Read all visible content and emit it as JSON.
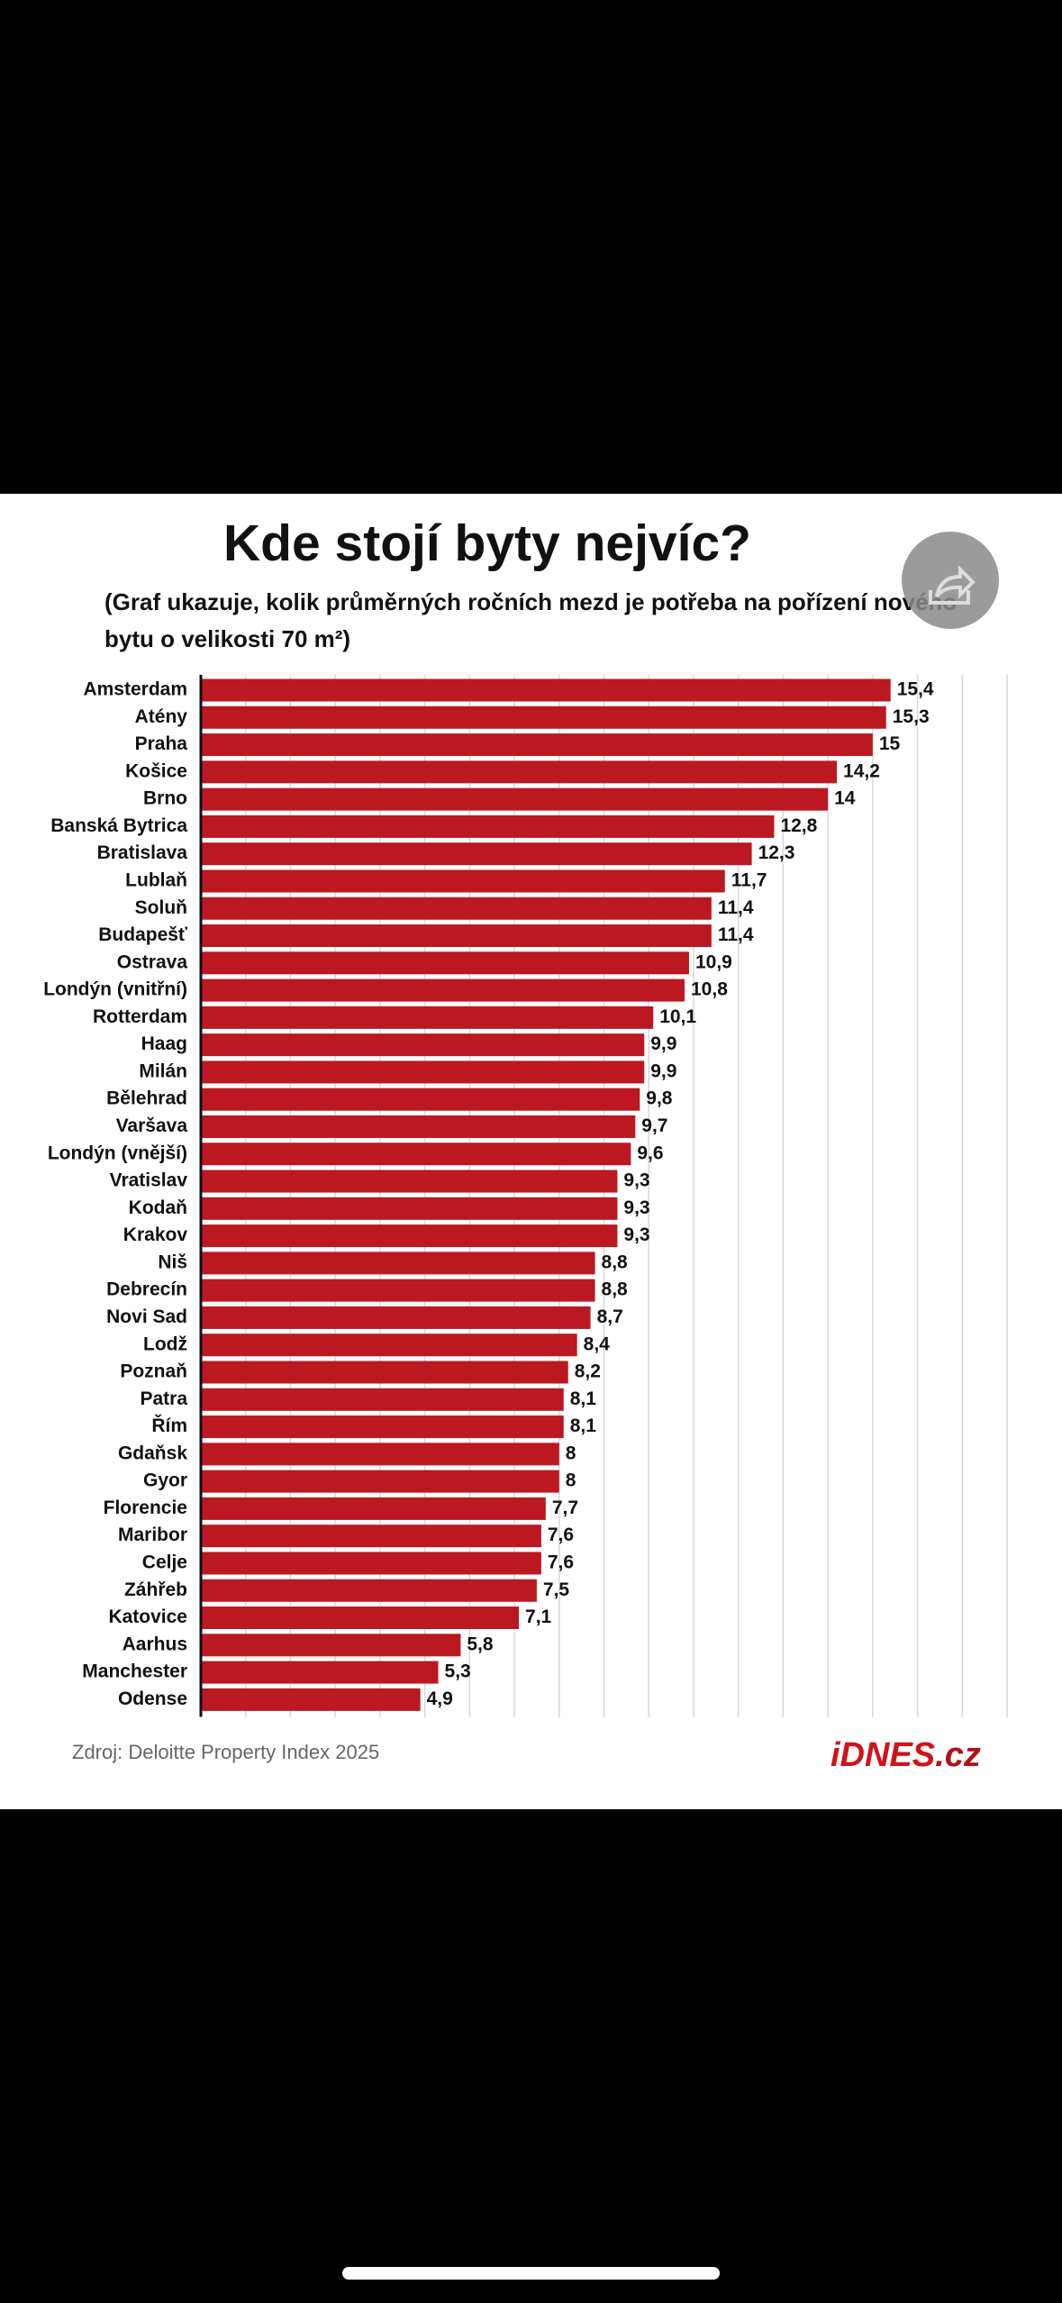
{
  "chart_data": {
    "type": "bar",
    "orientation": "horizontal",
    "title": "Kde stojí byty nejvíc?",
    "subtitle": [
      "(Graf ukazuje, kolik průměrných ročních mezd je potřeba na pořízení nového",
      "bytu o velikosti 70 m²)"
    ],
    "categories": [
      "Amsterdam",
      "Atény",
      "Praha",
      "Košice",
      "Brno",
      "Banská Bytrica",
      "Bratislava",
      "Lublaň",
      "Soluň",
      "Budapešť",
      "Ostrava",
      "Londýn (vnitřní)",
      "Rotterdam",
      "Haag",
      "Milán",
      "Bělehrad",
      "Varšava",
      "Londýn (vnější)",
      "Vratislav",
      "Kodaň",
      "Krakov",
      "Niš",
      "Debrecín",
      "Novi Sad",
      "Lodž",
      "Poznaň",
      "Patra",
      "Řím",
      "Gdaňsk",
      "Gyor",
      "Florencie",
      "Maribor",
      "Celje",
      "Záhřeb",
      "Katovice",
      "Aarhus",
      "Manchester",
      "Odense"
    ],
    "values": [
      15.4,
      15.3,
      15,
      14.2,
      14,
      12.8,
      12.3,
      11.7,
      11.4,
      11.4,
      10.9,
      10.8,
      10.1,
      9.9,
      9.9,
      9.8,
      9.7,
      9.6,
      9.3,
      9.3,
      9.3,
      8.8,
      8.8,
      8.7,
      8.4,
      8.2,
      8.1,
      8.1,
      8,
      8,
      7.7,
      7.6,
      7.6,
      7.5,
      7.1,
      5.8,
      5.3,
      4.9
    ],
    "value_labels": [
      "15,4",
      "15,3",
      "15",
      "14,2",
      "14",
      "12,8",
      "12,3",
      "11,7",
      "11,4",
      "11,4",
      "10,9",
      "10,8",
      "10,1",
      "9,9",
      "9,9",
      "9,8",
      "9,7",
      "9,6",
      "9,3",
      "9,3",
      "9,3",
      "8,8",
      "8,8",
      "8,7",
      "8,4",
      "8,2",
      "8,1",
      "8,1",
      "8",
      "8",
      "7,7",
      "7,6",
      "7,6",
      "7,5",
      "7,1",
      "5,8",
      "5,3",
      "4,9"
    ],
    "color": "#bb1822",
    "xlim": [
      0,
      18
    ],
    "xticks": [
      0,
      1,
      2,
      3,
      4,
      5,
      6,
      7,
      8,
      9,
      10,
      11,
      12,
      13,
      14,
      15,
      16,
      17,
      18
    ],
    "grid": true,
    "source": "Zdroj: Deloitte Property Index 2025",
    "logo": {
      "brand": "iDNES",
      ".suffix": ".cz"
    }
  }
}
